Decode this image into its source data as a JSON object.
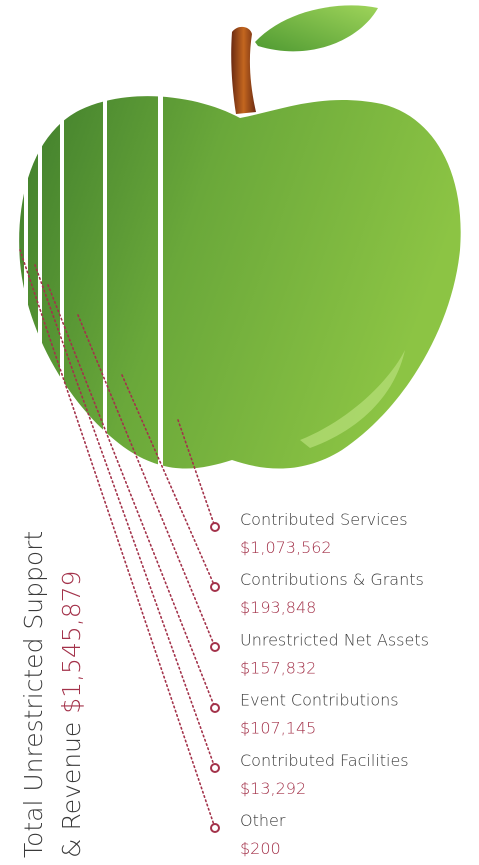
{
  "total": {
    "line1": "Total Unrestricted Support",
    "line2": "& Revenue",
    "value": "$1,545,879"
  },
  "items": [
    {
      "label": "Contributed Services",
      "value": "$1,073,562"
    },
    {
      "label": "Contributions & Grants",
      "value": "$193,848"
    },
    {
      "label": "Unrestricted Net Assets",
      "value": "$157,832"
    },
    {
      "label": "Event Contributions",
      "value": "$107,145"
    },
    {
      "label": "Contributed Facilities",
      "value": "$13,292"
    },
    {
      "label": "Other",
      "value": "$200"
    }
  ]
}
